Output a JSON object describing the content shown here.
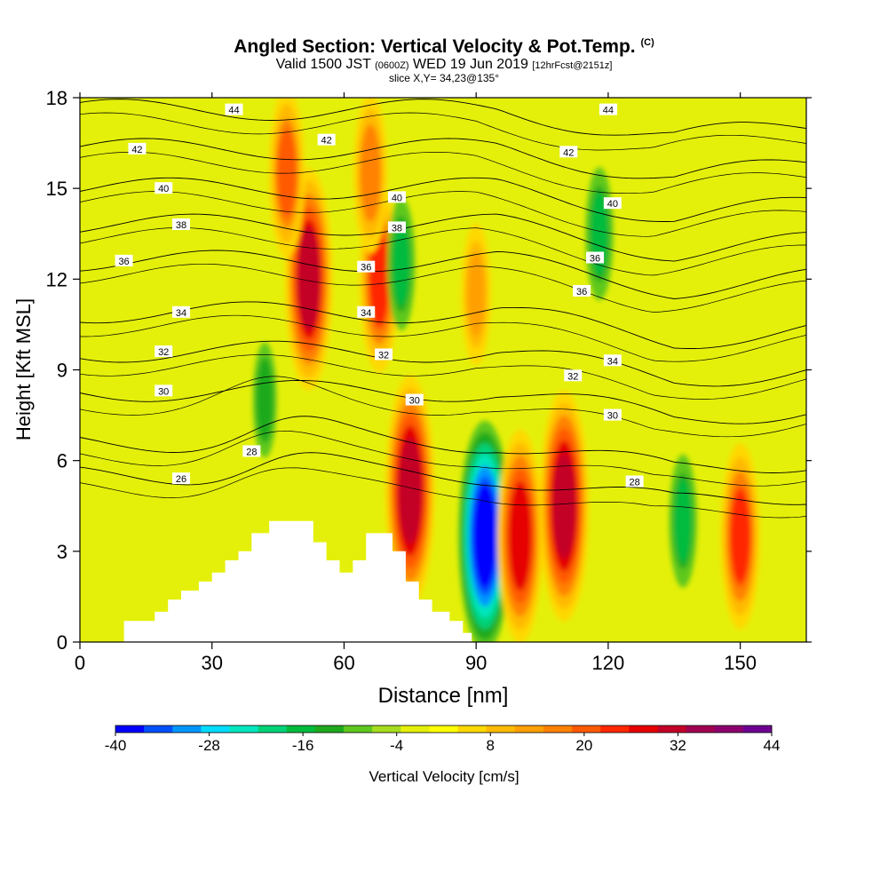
{
  "title": {
    "main": "Angled Section: Vertical Velocity & Pot.Temp.",
    "mark": "(C)",
    "valid_pre": "Valid 1500 JST",
    "valid_z": "(0600Z)",
    "valid_post": "WED 19 Jun 2019",
    "fcst": "[12hrFcst@2151z]",
    "slice": "slice X,Y= 34,23@135°"
  },
  "chart_data": {
    "type": "heatmap",
    "xlabel": "Distance [nm]",
    "ylabel": "Height [Kft MSL]",
    "xlim": [
      0,
      165
    ],
    "ylim": [
      0,
      18
    ],
    "xticks": [
      0,
      30,
      60,
      90,
      120,
      150
    ],
    "yticks": [
      0,
      3,
      6,
      9,
      12,
      15,
      18
    ],
    "colorbar": {
      "label": "Vertical Velocity [cm/s]",
      "min": -40,
      "max": 44,
      "step": 4,
      "tick_labels": [
        -40,
        -28,
        -16,
        -4,
        8,
        20,
        32,
        44
      ],
      "colors": [
        "#0000ff",
        "#0050ff",
        "#0096ff",
        "#00dcff",
        "#00e6be",
        "#00d278",
        "#00bb3c",
        "#1eaa1e",
        "#5fc81e",
        "#a6dc1e",
        "#e4f00a",
        "#ffff00",
        "#ffd800",
        "#ffba00",
        "#ffa000",
        "#ff8200",
        "#ff5a00",
        "#ff2800",
        "#e60000",
        "#c30028",
        "#a00050",
        "#8c006e",
        "#6e0091"
      ]
    },
    "velocity_features": [
      {
        "x": 52,
        "y": 12.0,
        "value": 34
      },
      {
        "x": 47,
        "y": 15.5,
        "value": 22
      },
      {
        "x": 68,
        "y": 12.0,
        "value": 26
      },
      {
        "x": 66,
        "y": 15.5,
        "value": 20
      },
      {
        "x": 75,
        "y": 5.0,
        "value": 36
      },
      {
        "x": 92,
        "y": 3.5,
        "value": -40
      },
      {
        "x": 100,
        "y": 3.5,
        "value": 32
      },
      {
        "x": 110,
        "y": 4.5,
        "value": 36
      },
      {
        "x": 150,
        "y": 3.5,
        "value": 26
      },
      {
        "x": 137,
        "y": 4.0,
        "value": -14
      },
      {
        "x": 118,
        "y": 13.5,
        "value": -14
      },
      {
        "x": 73,
        "y": 12.5,
        "value": -14
      },
      {
        "x": 42,
        "y": 8.0,
        "value": -10
      },
      {
        "x": 90,
        "y": 11.5,
        "value": 16
      }
    ],
    "terrain": [
      [
        0,
        0
      ],
      [
        10,
        0
      ],
      [
        10,
        0.7
      ],
      [
        17,
        0.7
      ],
      [
        17,
        1.0
      ],
      [
        20,
        1.0
      ],
      [
        20,
        1.4
      ],
      [
        23,
        1.4
      ],
      [
        23,
        1.7
      ],
      [
        27,
        1.7
      ],
      [
        27,
        2.0
      ],
      [
        30,
        2.0
      ],
      [
        30,
        2.3
      ],
      [
        33,
        2.3
      ],
      [
        33,
        2.7
      ],
      [
        36,
        2.7
      ],
      [
        36,
        3.0
      ],
      [
        39,
        3.0
      ],
      [
        39,
        3.6
      ],
      [
        43,
        3.6
      ],
      [
        43,
        4.0
      ],
      [
        53,
        4.0
      ],
      [
        53,
        3.3
      ],
      [
        56,
        3.3
      ],
      [
        56,
        2.7
      ],
      [
        59,
        2.7
      ],
      [
        59,
        2.3
      ],
      [
        62,
        2.3
      ],
      [
        62,
        2.7
      ],
      [
        65,
        2.7
      ],
      [
        65,
        3.6
      ],
      [
        71,
        3.6
      ],
      [
        71,
        3.0
      ],
      [
        74,
        3.0
      ],
      [
        74,
        2.0
      ],
      [
        77,
        2.0
      ],
      [
        77,
        1.4
      ],
      [
        80,
        1.4
      ],
      [
        80,
        1.0
      ],
      [
        84,
        1.0
      ],
      [
        84,
        0.7
      ],
      [
        87,
        0.7
      ],
      [
        87,
        0.3
      ],
      [
        89,
        0.3
      ],
      [
        89,
        0
      ],
      [
        165,
        0
      ]
    ],
    "theta_contours": [
      {
        "value": 26,
        "base_y": 5.5
      },
      {
        "value": 28,
        "base_y": 6.6
      },
      {
        "value": 30,
        "base_y": 8.3
      },
      {
        "value": 32,
        "base_y": 9.6
      },
      {
        "value": 34,
        "base_y": 10.9
      },
      {
        "value": 36,
        "base_y": 12.6
      },
      {
        "value": 38,
        "base_y": 13.8
      },
      {
        "value": 40,
        "base_y": 15.0
      },
      {
        "value": 42,
        "base_y": 16.3
      },
      {
        "value": 44,
        "base_y": 17.6
      }
    ],
    "contour_labels": [
      {
        "text": "44",
        "x": 35,
        "y": 17.6
      },
      {
        "text": "44",
        "x": 120,
        "y": 17.6
      },
      {
        "text": "42",
        "x": 13,
        "y": 16.3
      },
      {
        "text": "42",
        "x": 56,
        "y": 16.6
      },
      {
        "text": "42",
        "x": 111,
        "y": 16.2
      },
      {
        "text": "40",
        "x": 19,
        "y": 15.0
      },
      {
        "text": "40",
        "x": 72,
        "y": 14.7
      },
      {
        "text": "40",
        "x": 121,
        "y": 14.5
      },
      {
        "text": "38",
        "x": 23,
        "y": 13.8
      },
      {
        "text": "38",
        "x": 72,
        "y": 13.7
      },
      {
        "text": "36",
        "x": 10,
        "y": 12.6
      },
      {
        "text": "36",
        "x": 65,
        "y": 12.4
      },
      {
        "text": "36",
        "x": 117,
        "y": 12.7
      },
      {
        "text": "36",
        "x": 114,
        "y": 11.6
      },
      {
        "text": "34",
        "x": 23,
        "y": 10.9
      },
      {
        "text": "34",
        "x": 65,
        "y": 10.9
      },
      {
        "text": "34",
        "x": 121,
        "y": 9.3
      },
      {
        "text": "32",
        "x": 19,
        "y": 9.6
      },
      {
        "text": "32",
        "x": 69,
        "y": 9.5
      },
      {
        "text": "32",
        "x": 112,
        "y": 8.8
      },
      {
        "text": "30",
        "x": 19,
        "y": 8.3
      },
      {
        "text": "30",
        "x": 76,
        "y": 8.0
      },
      {
        "text": "30",
        "x": 121,
        "y": 7.5
      },
      {
        "text": "28",
        "x": 39,
        "y": 6.3
      },
      {
        "text": "28",
        "x": 126,
        "y": 5.3
      },
      {
        "text": "26",
        "x": 23,
        "y": 5.4
      }
    ]
  }
}
